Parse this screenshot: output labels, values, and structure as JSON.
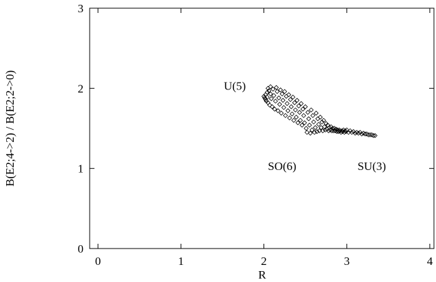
{
  "chart_data": {
    "type": "scatter",
    "title": "",
    "xlabel": "R",
    "ylabel": "B(E2;4->2) / B(E2;2->0)",
    "xlim": [
      -0.1,
      4.05
    ],
    "ylim": [
      0,
      3
    ],
    "x_ticks": [
      "0",
      "1",
      "2",
      "3",
      "4"
    ],
    "y_ticks": [
      "0",
      "1",
      "2",
      "3"
    ],
    "grid": false,
    "marker": "diamond",
    "annotations": [
      {
        "text": "U(5)",
        "x": 1.65,
        "y": 1.98
      },
      {
        "text": "SO(6)",
        "x": 2.22,
        "y": 0.98
      },
      {
        "text": "SU(3)",
        "x": 3.3,
        "y": 0.98
      }
    ],
    "series": [
      {
        "points": [
          [
            2.0,
            1.9
          ],
          [
            2.01,
            1.88
          ],
          [
            2.02,
            1.86
          ],
          [
            2.02,
            1.92
          ],
          [
            2.03,
            1.84
          ],
          [
            2.04,
            1.95
          ],
          [
            2.04,
            1.89
          ],
          [
            2.05,
            1.82
          ],
          [
            2.05,
            2.0
          ],
          [
            2.06,
            1.97
          ],
          [
            2.07,
            1.79
          ],
          [
            2.08,
            1.93
          ],
          [
            2.08,
            2.02
          ],
          [
            2.09,
            1.87
          ],
          [
            2.1,
            1.77
          ],
          [
            2.11,
            1.99
          ],
          [
            2.12,
            1.91
          ],
          [
            2.13,
            1.74
          ],
          [
            2.14,
            1.84
          ],
          [
            2.15,
            2.01
          ],
          [
            2.16,
            1.96
          ],
          [
            2.17,
            1.72
          ],
          [
            2.18,
            1.88
          ],
          [
            2.19,
            1.8
          ],
          [
            2.2,
            1.98
          ],
          [
            2.21,
            1.69
          ],
          [
            2.22,
            1.93
          ],
          [
            2.23,
            1.85
          ],
          [
            2.24,
            1.76
          ],
          [
            2.25,
            1.96
          ],
          [
            2.26,
            1.66
          ],
          [
            2.27,
            1.9
          ],
          [
            2.28,
            1.81
          ],
          [
            2.29,
            1.72
          ],
          [
            2.3,
            1.92
          ],
          [
            2.31,
            1.63
          ],
          [
            2.32,
            1.86
          ],
          [
            2.33,
            1.77
          ],
          [
            2.34,
            1.68
          ],
          [
            2.35,
            1.89
          ],
          [
            2.36,
            1.6
          ],
          [
            2.37,
            1.82
          ],
          [
            2.38,
            1.73
          ],
          [
            2.39,
            1.64
          ],
          [
            2.4,
            1.85
          ],
          [
            2.41,
            1.57
          ],
          [
            2.42,
            1.78
          ],
          [
            2.43,
            1.7
          ],
          [
            2.44,
            1.6
          ],
          [
            2.45,
            1.81
          ],
          [
            2.46,
            1.54
          ],
          [
            2.47,
            1.74
          ],
          [
            2.48,
            1.66
          ],
          [
            2.49,
            1.57
          ],
          [
            2.5,
            1.77
          ],
          [
            2.51,
            1.5
          ],
          [
            2.52,
            1.45
          ],
          [
            2.53,
            1.7
          ],
          [
            2.54,
            1.62
          ],
          [
            2.55,
            1.54
          ],
          [
            2.56,
            1.44
          ],
          [
            2.57,
            1.73
          ],
          [
            2.58,
            1.48
          ],
          [
            2.59,
            1.66
          ],
          [
            2.6,
            1.58
          ],
          [
            2.61,
            1.45
          ],
          [
            2.62,
            1.51
          ],
          [
            2.63,
            1.69
          ],
          [
            2.64,
            1.46
          ],
          [
            2.65,
            1.62
          ],
          [
            2.66,
            1.55
          ],
          [
            2.67,
            1.47
          ],
          [
            2.68,
            1.64
          ],
          [
            2.69,
            1.51
          ],
          [
            2.7,
            1.58
          ],
          [
            2.71,
            1.47
          ],
          [
            2.72,
            1.6
          ],
          [
            2.73,
            1.52
          ],
          [
            2.74,
            1.48
          ],
          [
            2.75,
            1.56
          ],
          [
            2.76,
            1.49
          ],
          [
            2.77,
            1.54
          ],
          [
            2.78,
            1.47
          ],
          [
            2.79,
            1.51
          ],
          [
            2.8,
            1.48
          ],
          [
            2.81,
            1.52
          ],
          [
            2.82,
            1.47
          ],
          [
            2.83,
            1.5
          ],
          [
            2.84,
            1.47
          ],
          [
            2.85,
            1.5
          ],
          [
            2.86,
            1.47
          ],
          [
            2.87,
            1.49
          ],
          [
            2.88,
            1.46
          ],
          [
            2.89,
            1.48
          ],
          [
            2.9,
            1.46
          ],
          [
            2.91,
            1.48
          ],
          [
            2.92,
            1.47
          ],
          [
            2.93,
            1.45
          ],
          [
            2.94,
            1.47
          ],
          [
            2.95,
            1.46
          ],
          [
            2.96,
            1.48
          ],
          [
            2.97,
            1.45
          ],
          [
            2.98,
            1.47
          ],
          [
            2.99,
            1.46
          ],
          [
            3.0,
            1.48
          ],
          [
            3.02,
            1.45
          ],
          [
            3.04,
            1.47
          ],
          [
            3.06,
            1.45
          ],
          [
            3.08,
            1.46
          ],
          [
            3.1,
            1.44
          ],
          [
            3.12,
            1.45
          ],
          [
            3.14,
            1.44
          ],
          [
            3.16,
            1.45
          ],
          [
            3.18,
            1.43
          ],
          [
            3.2,
            1.44
          ],
          [
            3.22,
            1.43
          ],
          [
            3.24,
            1.43
          ],
          [
            3.26,
            1.42
          ],
          [
            3.28,
            1.42
          ],
          [
            3.3,
            1.42
          ],
          [
            3.32,
            1.41
          ],
          [
            3.34,
            1.41
          ]
        ]
      }
    ]
  }
}
